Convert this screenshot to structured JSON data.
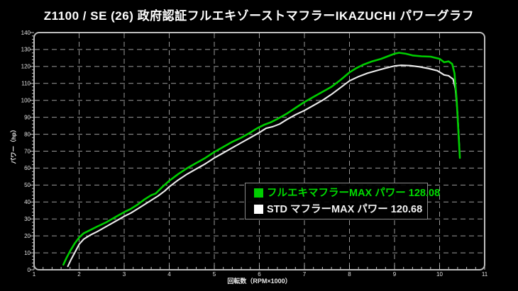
{
  "title": "Z1100 / SE (26) 政府認証フルエキゾーストマフラーIKAZUCHI パワーグラフ",
  "colors": {
    "background": "#000000",
    "frame": "#bdbdbd",
    "grid": "#9a9a9a",
    "tick_label": "#e0e0e0",
    "fullex_green": "#00cd00",
    "std_white": "#ececec"
  },
  "chart_data": {
    "type": "line",
    "title": "Z1100 / SE (26) 政府認証フルエキゾーストマフラーIKAZUCHI パワーグラフ",
    "xlabel": "回転数（RPM×1000）",
    "ylabel": "パワー（hp）",
    "xlim": [
      1,
      11
    ],
    "ylim": [
      0,
      140
    ],
    "x_ticks": [
      1,
      2,
      3,
      4,
      5,
      6,
      7,
      8,
      9,
      10,
      11
    ],
    "y_ticks": [
      0,
      10,
      20,
      30,
      40,
      50,
      60,
      70,
      80,
      90,
      100,
      110,
      120,
      130,
      140
    ],
    "x_minor_step": 0.2,
    "y_minor_step": 2,
    "grid": "dashed",
    "legend_position": "center-right",
    "series": [
      {
        "name": "フルエキマフラー",
        "max_label": "MAX パワー 128.08",
        "max_power": 128.08,
        "color": "#00cd00",
        "points": [
          [
            1.65,
            3
          ],
          [
            1.72,
            7
          ],
          [
            1.8,
            11
          ],
          [
            1.9,
            15.5
          ],
          [
            2.0,
            19
          ],
          [
            2.1,
            21.5
          ],
          [
            2.25,
            23.5
          ],
          [
            2.4,
            25.5
          ],
          [
            2.6,
            28
          ],
          [
            2.8,
            31
          ],
          [
            3.0,
            34
          ],
          [
            3.15,
            36
          ],
          [
            3.3,
            38.5
          ],
          [
            3.45,
            41.5
          ],
          [
            3.6,
            44
          ],
          [
            3.7,
            45
          ],
          [
            3.85,
            49
          ],
          [
            4.0,
            52.5
          ],
          [
            4.2,
            56.5
          ],
          [
            4.4,
            60
          ],
          [
            4.6,
            63
          ],
          [
            4.8,
            66
          ],
          [
            5.0,
            69.5
          ],
          [
            5.2,
            72.5
          ],
          [
            5.4,
            75.5
          ],
          [
            5.6,
            78
          ],
          [
            5.8,
            81
          ],
          [
            5.95,
            83.5
          ],
          [
            6.1,
            85.5
          ],
          [
            6.25,
            87
          ],
          [
            6.4,
            89
          ],
          [
            6.6,
            92
          ],
          [
            6.8,
            95.5
          ],
          [
            7.0,
            99
          ],
          [
            7.2,
            102
          ],
          [
            7.4,
            105
          ],
          [
            7.6,
            108
          ],
          [
            7.8,
            112
          ],
          [
            8.0,
            116.5
          ],
          [
            8.15,
            119
          ],
          [
            8.3,
            121
          ],
          [
            8.5,
            123
          ],
          [
            8.7,
            124.5
          ],
          [
            8.85,
            126
          ],
          [
            9.0,
            127.5
          ],
          [
            9.1,
            128.08
          ],
          [
            9.25,
            127.5
          ],
          [
            9.4,
            126.5
          ],
          [
            9.6,
            126
          ],
          [
            9.8,
            125.8
          ],
          [
            10.0,
            124.5
          ],
          [
            10.1,
            122.5
          ],
          [
            10.2,
            123
          ],
          [
            10.28,
            121.5
          ],
          [
            10.33,
            116
          ],
          [
            10.38,
            100
          ],
          [
            10.42,
            80
          ],
          [
            10.45,
            66
          ]
        ]
      },
      {
        "name": "STD マフラー",
        "max_label": "MAX パワー 120.68",
        "max_power": 120.68,
        "color": "#ececec",
        "points": [
          [
            1.75,
            2
          ],
          [
            1.82,
            6
          ],
          [
            1.9,
            10
          ],
          [
            2.0,
            15
          ],
          [
            2.1,
            18
          ],
          [
            2.25,
            20.5
          ],
          [
            2.4,
            22.5
          ],
          [
            2.6,
            25.5
          ],
          [
            2.8,
            28.5
          ],
          [
            3.0,
            31.5
          ],
          [
            3.15,
            33.5
          ],
          [
            3.3,
            36
          ],
          [
            3.45,
            38.5
          ],
          [
            3.6,
            41
          ],
          [
            3.75,
            43.5
          ],
          [
            3.9,
            46.5
          ],
          [
            4.0,
            49
          ],
          [
            4.2,
            53
          ],
          [
            4.4,
            56.5
          ],
          [
            4.6,
            59.5
          ],
          [
            4.8,
            62.5
          ],
          [
            5.0,
            66
          ],
          [
            5.2,
            69
          ],
          [
            5.4,
            72
          ],
          [
            5.6,
            75
          ],
          [
            5.8,
            78
          ],
          [
            6.0,
            81
          ],
          [
            6.15,
            83.5
          ],
          [
            6.3,
            84.5
          ],
          [
            6.45,
            86
          ],
          [
            6.6,
            88.5
          ],
          [
            6.8,
            91.5
          ],
          [
            7.0,
            94
          ],
          [
            7.2,
            97
          ],
          [
            7.4,
            100
          ],
          [
            7.6,
            103.5
          ],
          [
            7.8,
            107.5
          ],
          [
            8.0,
            111.5
          ],
          [
            8.2,
            114
          ],
          [
            8.4,
            116
          ],
          [
            8.6,
            117.5
          ],
          [
            8.8,
            119
          ],
          [
            9.0,
            120.3
          ],
          [
            9.15,
            120.68
          ],
          [
            9.35,
            120.5
          ],
          [
            9.55,
            119.8
          ],
          [
            9.75,
            118.8
          ],
          [
            9.95,
            117.5
          ],
          [
            10.1,
            115
          ],
          [
            10.2,
            114.5
          ],
          [
            10.3,
            112.5
          ],
          [
            10.35,
            107
          ],
          [
            10.4,
            92
          ],
          [
            10.44,
            72
          ]
        ]
      }
    ]
  }
}
